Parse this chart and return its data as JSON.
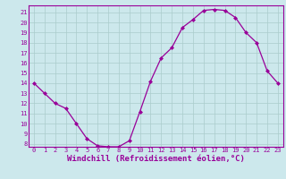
{
  "x": [
    0,
    1,
    2,
    3,
    4,
    5,
    6,
    7,
    8,
    9,
    10,
    11,
    12,
    13,
    14,
    15,
    16,
    17,
    18,
    19,
    20,
    21,
    22,
    23
  ],
  "y": [
    14,
    13,
    12,
    11.5,
    10,
    8.5,
    7.8,
    7.7,
    7.7,
    8.3,
    11.2,
    14.2,
    16.5,
    17.5,
    19.5,
    20.3,
    21.2,
    21.3,
    21.2,
    20.5,
    19.0,
    18.0,
    15.2,
    14.0
  ],
  "line_color": "#990099",
  "marker": "D",
  "marker_size": 2,
  "bg_color": "#cce8ec",
  "grid_color": "#aacccc",
  "axis_color": "#990099",
  "xlabel": "Windchill (Refroidissement éolien,°C)",
  "ylim": [
    7.7,
    21.7
  ],
  "yticks": [
    8,
    9,
    10,
    11,
    12,
    13,
    14,
    15,
    16,
    17,
    18,
    19,
    20,
    21
  ],
  "xlim": [
    -0.5,
    23.5
  ],
  "xticks": [
    0,
    1,
    2,
    3,
    4,
    5,
    6,
    7,
    8,
    9,
    10,
    11,
    12,
    13,
    14,
    15,
    16,
    17,
    18,
    19,
    20,
    21,
    22,
    23
  ],
  "tick_fontsize": 5.0,
  "xlabel_fontsize": 6.5
}
